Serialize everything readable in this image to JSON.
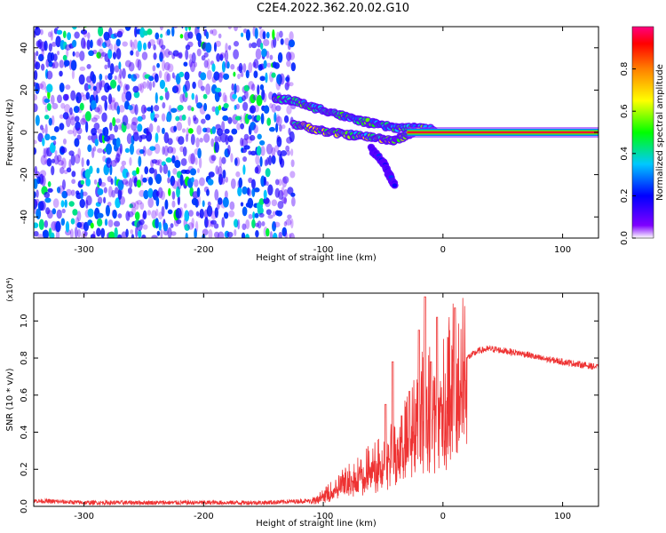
{
  "title": "C2E4.2022.362.20.02.G10",
  "chart_data": [
    {
      "type": "heatmap",
      "xlabel": "Height of straight line (km)",
      "ylabel": "Frequency (Hz)",
      "xlim": [
        -342,
        130
      ],
      "ylim": [
        -50,
        50
      ],
      "x_ticks": [
        -300,
        -200,
        -100,
        0,
        100
      ],
      "x_tick_labels": [
        "-300",
        "-200",
        "-100",
        "0",
        "100"
      ],
      "y_ticks": [
        -40,
        -20,
        0,
        20,
        40
      ],
      "y_tick_labels": [
        "-40",
        "-20",
        "0",
        "20",
        "40"
      ],
      "colorbar": {
        "label": "Normalized spectral amplitude",
        "range": [
          0,
          1
        ],
        "ticks": [
          0.0,
          0.2,
          0.4,
          0.6,
          0.8
        ],
        "tick_labels": [
          "0.0",
          "0.2",
          "0.4",
          "0.6",
          "0.8"
        ],
        "colormap": "rainbow (white-violet-blue-cyan-green-yellow-orange-red-magenta)"
      },
      "features": [
        {
          "description": "noise",
          "x_range": [
            -342,
            -125
          ],
          "y_range": [
            -50,
            50
          ],
          "level": 0.15
        },
        {
          "description": "upper branch",
          "points": [
            [
              -140,
              16
            ],
            [
              -125,
              15
            ],
            [
              -110,
              12
            ],
            [
              -95,
              10
            ],
            [
              -80,
              7
            ],
            [
              -65,
              5
            ],
            [
              -50,
              3
            ],
            [
              -35,
              2
            ],
            [
              -20,
              2
            ],
            [
              -5,
              1
            ]
          ],
          "level": 0.45
        },
        {
          "description": "lower branch",
          "points": [
            [
              -125,
              4
            ],
            [
              -110,
              2
            ],
            [
              -95,
              0
            ],
            [
              -80,
              -1
            ],
            [
              -65,
              -2
            ],
            [
              -50,
              -3
            ],
            [
              -40,
              -4
            ],
            [
              -30,
              -1
            ],
            [
              -20,
              1
            ]
          ],
          "level": 0.55
        },
        {
          "description": "descending tail",
          "points": [
            [
              -60,
              -8
            ],
            [
              -50,
              -14
            ],
            [
              -45,
              -20
            ],
            [
              -40,
              -25
            ]
          ],
          "level": 0.2
        },
        {
          "description": "carrier",
          "x_range": [
            -30,
            130
          ],
          "y": 0,
          "level": 0.95
        }
      ]
    },
    {
      "type": "line",
      "xlabel": "Height of straight line (km)",
      "ylabel": "SNR (10 * v/v)",
      "y_multiplier": "(x10⁴)",
      "xlim": [
        -342,
        130
      ],
      "ylim": [
        0,
        1.15
      ],
      "x_ticks": [
        -300,
        -200,
        -100,
        0,
        100
      ],
      "x_tick_labels": [
        "-300",
        "-200",
        "-100",
        "0",
        "100"
      ],
      "y_ticks": [
        0.0,
        0.2,
        0.4,
        0.6,
        0.8,
        1.0
      ],
      "y_tick_labels": [
        "0.0",
        "0.2",
        "0.4",
        "0.6",
        "0.8",
        "1.0"
      ],
      "color": "#ee3333",
      "series": [
        {
          "x": [
            -342,
            -300,
            -250,
            -200,
            -150,
            -110,
            -100,
            -90,
            -80,
            -70,
            -60,
            -50,
            -45,
            -40,
            -35,
            -30,
            -25,
            -20,
            -15,
            -10,
            -5,
            0,
            5,
            10,
            15,
            20,
            30,
            40,
            50,
            60,
            70,
            80,
            90,
            100,
            110,
            120,
            130
          ],
          "y": [
            0.03,
            0.02,
            0.02,
            0.02,
            0.02,
            0.03,
            0.06,
            0.1,
            0.15,
            0.18,
            0.22,
            0.25,
            0.28,
            0.32,
            0.35,
            0.4,
            0.45,
            0.52,
            0.6,
            0.58,
            0.55,
            0.62,
            0.68,
            0.72,
            0.76,
            0.8,
            0.84,
            0.85,
            0.84,
            0.83,
            0.82,
            0.8,
            0.79,
            0.78,
            0.77,
            0.76,
            0.75
          ],
          "peaks": [
            [
              -48,
              0.55
            ],
            [
              -42,
              0.78
            ],
            [
              -28,
              0.62
            ],
            [
              -20,
              0.95
            ],
            [
              -15,
              1.13
            ],
            [
              -10,
              0.78
            ],
            [
              -5,
              1.02
            ],
            [
              10,
              1.07
            ]
          ]
        }
      ]
    }
  ]
}
